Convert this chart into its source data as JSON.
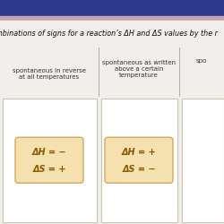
{
  "title": "mbinations of signs for a reaction’s ΔH and ΔS values by the r",
  "col1_header": "spontaneous in reverse\nat all temperatures",
  "col2_header": "spontaneous as written\nabove a certain\ntemperature",
  "col3_header": "spo",
  "box1_line1": "ΔH = −",
  "box1_line2": "ΔS = +",
  "box2_line1": "ΔH = +",
  "box2_line2": "ΔS = −",
  "bg_color": "#f2eeeb",
  "box_bg_color": "#f5e0b0",
  "box_border_color": "#d4a860",
  "cell_bg_color": "#ffffff",
  "cell_border_color": "#c8c8b0",
  "header_area_color": "#f2eeeb",
  "text_color": "#8b5a00",
  "header_color": "#333333",
  "title_color": "#111111",
  "top_bar_color": "#2b3a8a",
  "thin_bar_color": "#c8a0b0",
  "col_divider_color": "#b0b0a0",
  "top_bar_height": 0.072,
  "thin_bar_height": 0.018
}
